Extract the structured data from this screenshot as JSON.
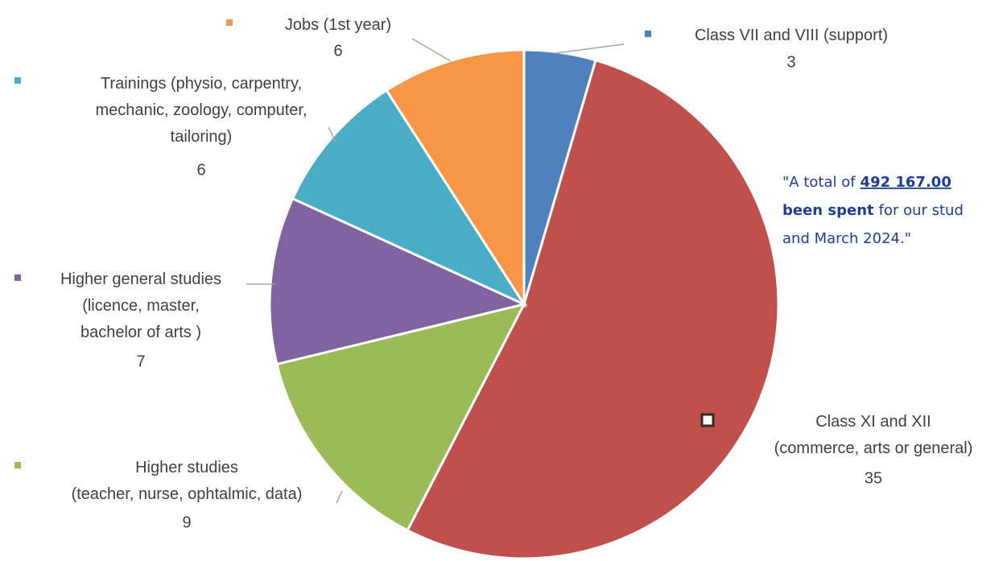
{
  "chart_data": {
    "type": "pie",
    "categories": [
      "Class VII and VIII (support)",
      "Class XI and XII\n(commerce, arts or general)",
      "Higher studies\n(teacher, nurse, ophtalmic, data)",
      "Higher general studies\n(licence, master,\nbachelor of arts )",
      "Trainings (physio, carpentry,\nmechanic, zoology, computer,\ntailoring)",
      "Jobs (1st year)"
    ],
    "values": [
      3,
      35,
      9,
      7,
      6,
      6
    ],
    "colors": [
      "#4f81bd",
      "#c0504d",
      "#9bbb59",
      "#8064a2",
      "#4bacc6",
      "#f79646"
    ],
    "annotation": [
      "\"A total of",
      "492 167.00",
      "been spent",
      "for our stud",
      "and March 2024.\""
    ]
  }
}
